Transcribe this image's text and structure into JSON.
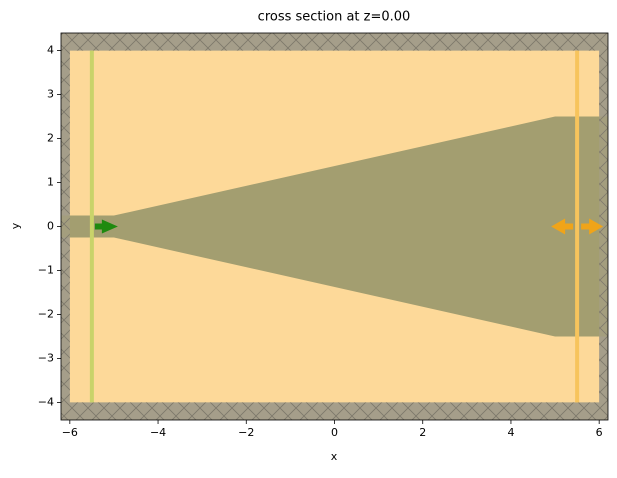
{
  "chart_data": {
    "type": "structure",
    "title": "cross section at z=0.00",
    "xlabel": "x",
    "ylabel": "y",
    "xlim": [
      -6.2,
      6.2
    ],
    "ylim": [
      -4.4,
      4.4
    ],
    "xticks": [
      {
        "value": -6,
        "label": "−6"
      },
      {
        "value": -4,
        "label": "−4"
      },
      {
        "value": -2,
        "label": "−2"
      },
      0,
      2,
      4,
      6
    ],
    "yticks": [
      {
        "value": -4,
        "label": "−4"
      },
      {
        "value": -3,
        "label": "−3"
      },
      {
        "value": -2,
        "label": "−2"
      },
      {
        "value": -1,
        "label": "−1"
      },
      0,
      1,
      2,
      3,
      4
    ],
    "sim_box": {
      "x": [
        -6,
        6
      ],
      "y": [
        -4,
        4
      ],
      "color": "#fdd999"
    },
    "pml_color": "#a59e8b",
    "structure": {
      "x": [
        -6.2,
        -5,
        5,
        6.2,
        6.2,
        5,
        -5,
        -6.2
      ],
      "y": [
        0.25,
        0.25,
        2.5,
        2.5,
        -2.5,
        -2.5,
        -0.25,
        -0.25
      ],
      "color": "#a39e70"
    },
    "source": {
      "x": -5.5,
      "color": "#c9d36a",
      "arrow_color": "#1f8a0f"
    },
    "monitor": {
      "x": 5.5,
      "color": "#f7c45c",
      "arrow_color": "#f0a419"
    }
  }
}
